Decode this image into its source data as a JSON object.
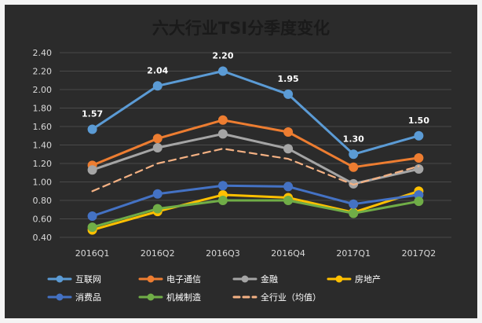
{
  "chart_data": {
    "type": "line",
    "title": "六大行业TSI分季度变化",
    "xlabel": "",
    "ylabel": "",
    "categories": [
      "2016Q1",
      "2016Q2",
      "2016Q3",
      "2016Q4",
      "2017Q1",
      "2017Q2"
    ],
    "ylim": [
      0.4,
      2.4
    ],
    "yticks": [
      "0.40",
      "0.60",
      "0.80",
      "1.00",
      "1.20",
      "1.40",
      "1.60",
      "1.80",
      "2.00",
      "2.20",
      "2.40"
    ],
    "grid": true,
    "legend_position": "bottom",
    "series": [
      {
        "name": "互联网",
        "values": [
          1.57,
          2.04,
          2.2,
          1.95,
          1.3,
          1.5
        ],
        "color": "#5b9bd5",
        "style": "solid",
        "data_labels": [
          "1.57",
          "2.04",
          "2.20",
          "1.95",
          "1.30",
          "1.50"
        ]
      },
      {
        "name": "电子通信",
        "values": [
          1.18,
          1.47,
          1.67,
          1.54,
          1.16,
          1.26
        ],
        "color": "#ed7d31",
        "style": "solid"
      },
      {
        "name": "金融",
        "values": [
          1.13,
          1.37,
          1.52,
          1.36,
          0.98,
          1.14
        ],
        "color": "#a5a5a5",
        "style": "solid"
      },
      {
        "name": "房地产",
        "values": [
          0.48,
          0.68,
          0.86,
          0.83,
          0.67,
          0.9
        ],
        "color": "#ffc000",
        "style": "solid"
      },
      {
        "name": "消费品",
        "values": [
          0.63,
          0.87,
          0.96,
          0.95,
          0.76,
          0.86
        ],
        "color": "#4472c4",
        "style": "solid"
      },
      {
        "name": "机械制造",
        "values": [
          0.51,
          0.71,
          0.8,
          0.8,
          0.66,
          0.79
        ],
        "color": "#70ad47",
        "style": "solid"
      },
      {
        "name": "全行业（均值）",
        "values": [
          0.9,
          1.2,
          1.36,
          1.25,
          0.97,
          1.17
        ],
        "color": "#f4b183",
        "style": "dashed"
      }
    ]
  },
  "colors": {
    "background": "#f4f4f4",
    "plot_background": "#2b2b2b",
    "title": "#1a1a1a",
    "grid": "#4a4a4a",
    "tick_text": "#d9d9d9",
    "label_text": "#ffffff",
    "legend_text": "#ffffff"
  }
}
